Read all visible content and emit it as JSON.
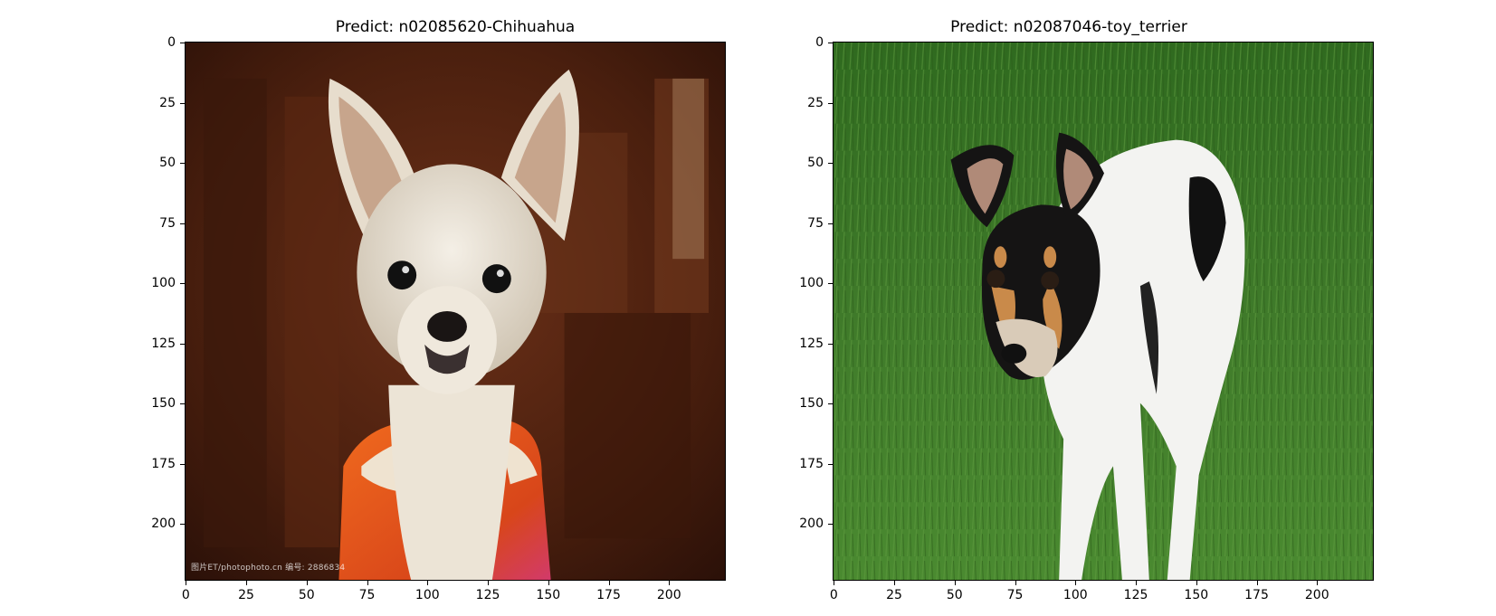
{
  "figure": {
    "panels": [
      {
        "title": "Predict: n02085620-Chihuahua",
        "image_subject": "white chihuahua in orange jacket",
        "watermark": "图片ET/photophoto.cn 编号: 2886834",
        "ticks": [
          "0",
          "25",
          "50",
          "75",
          "100",
          "125",
          "150",
          "175",
          "200"
        ]
      },
      {
        "title": "Predict: n02087046-toy_terrier",
        "image_subject": "black and white toy terrier on grass",
        "ticks": [
          "0",
          "25",
          "50",
          "75",
          "100",
          "125",
          "150",
          "175",
          "200"
        ]
      }
    ],
    "axis_range": [
      0,
      224
    ],
    "colors": {
      "background": "#ffffff",
      "grass": "#3f7a2a",
      "wood": "#4a1f0e",
      "jacket": "#e0501c"
    }
  }
}
